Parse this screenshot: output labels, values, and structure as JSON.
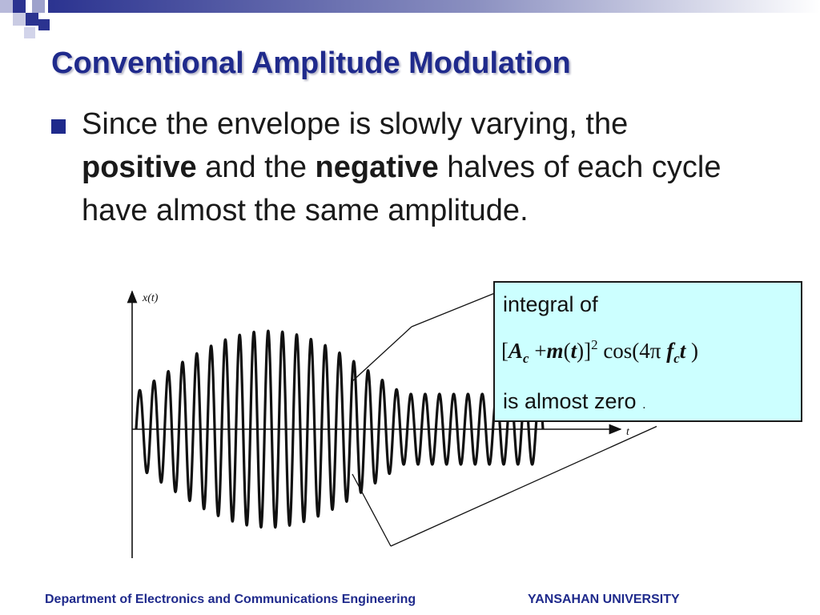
{
  "slide": {
    "title": "Conventional Amplitude Modulation",
    "bullet": {
      "part1": "Since the envelope is slowly varying, the",
      "bold1": "positive",
      "part2": "and the",
      "bold2": "negative",
      "part3": "halves of each cycle have almost the same amplitude."
    },
    "accent_color": "#1f2a8c"
  },
  "figure": {
    "y_axis_label": "x(t)",
    "x_axis_label": "t"
  },
  "callout": {
    "line1": "integral of",
    "formula": {
      "open": "[",
      "A": "A",
      "A_sub": "c",
      "plus": "+",
      "m": "m",
      "paren_open": "(",
      "t1": "t",
      "paren_close": ")]",
      "exp": "2",
      "cos": "cos(4π",
      "f": "f",
      "f_sub": "c",
      "t2": "t",
      "close": ")"
    },
    "line3": "is almost zero",
    "trailing": ".",
    "background": "#ccffff"
  },
  "footer": {
    "department": "Department of Electronics and Communications Engineering",
    "university": "YANSAHAN UNIVERSITY"
  }
}
